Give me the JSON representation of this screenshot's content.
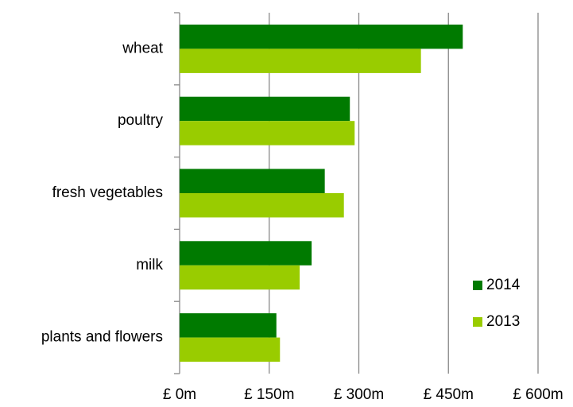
{
  "chart_data": {
    "type": "hbar",
    "categories": [
      "wheat",
      "poultry",
      "fresh vegetables",
      "milk",
      "plants and flowers"
    ],
    "series": [
      {
        "name": "2014",
        "color": "#007a00",
        "values": [
          474,
          285,
          243,
          221,
          162
        ]
      },
      {
        "name": "2013",
        "color": "#99cc00",
        "values": [
          404,
          293,
          275,
          201,
          168
        ]
      }
    ],
    "xlim": [
      0,
      600
    ],
    "xticks": [
      {
        "value": 0,
        "label": "£ 0m"
      },
      {
        "value": 150,
        "label": "£ 150m"
      },
      {
        "value": 300,
        "label": "£ 300m"
      },
      {
        "value": 450,
        "label": "£ 450m"
      },
      {
        "value": 600,
        "label": "£ 600m"
      }
    ],
    "grid": true,
    "legend": "right"
  }
}
